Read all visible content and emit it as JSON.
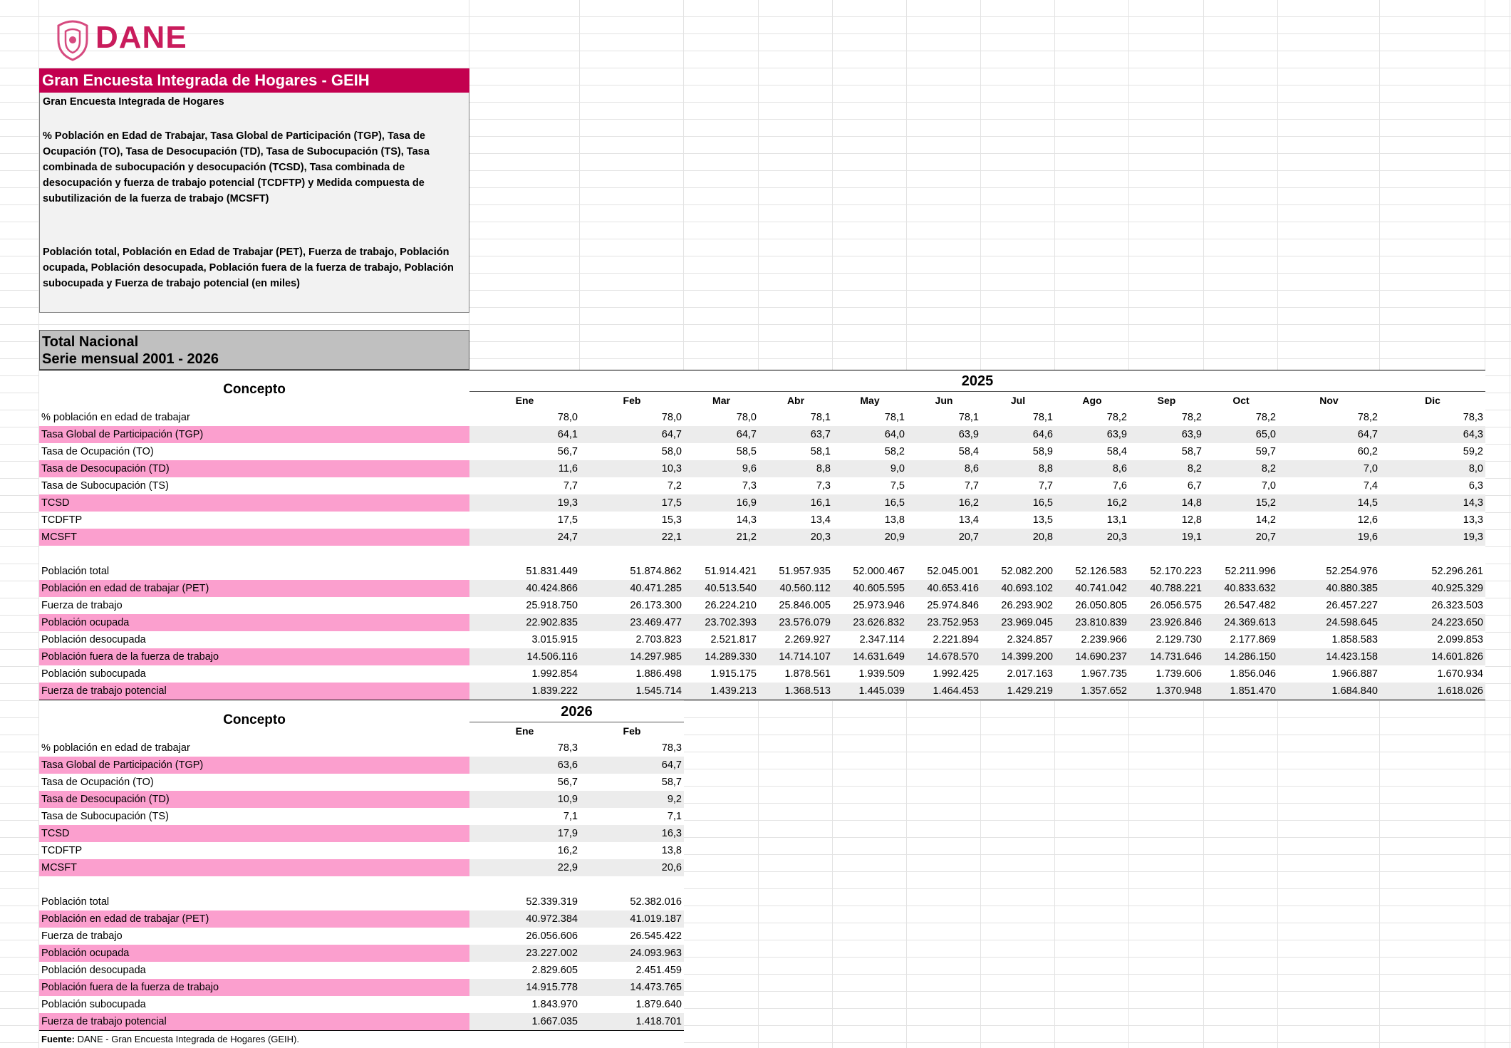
{
  "header": {
    "logo": "DANE",
    "title": "Gran Encuesta Integrada de Hogares - GEIH",
    "subtitle": "Gran Encuesta Integrada de Hogares",
    "description_rates": "% Población en Edad de Trabajar, Tasa Global de Participación (TGP), Tasa de Ocupación (TO), Tasa de Desocupación (TD), Tasa de Subocupación (TS), Tasa combinada de subocupación y desocupación (TCSD), Tasa combinada de desocupación y fuerza de trabajo potencial (TCDFTP) y Medida compuesta de subutilización de la fuerza de trabajo (MCSFT)",
    "description_population": "Población total, Población en Edad de Trabajar (PET), Fuerza de trabajo, Población ocupada, Población desocupada, Población fuera de la fuerza de trabajo, Población subocupada y Fuerza de trabajo potencial (en miles)",
    "region": "Total Nacional",
    "series": "Serie mensual 2001 - 2026"
  },
  "tables": [
    {
      "concept": "Concepto",
      "year": "2025",
      "months": [
        "Ene",
        "Feb",
        "Mar",
        "Abr",
        "May",
        "Jun",
        "Jul",
        "Ago",
        "Sep",
        "Oct",
        "Nov",
        "Dic"
      ],
      "groups": [
        [
          {
            "label": "% población en edad de trabajar",
            "values": [
              "78,0",
              "78,0",
              "78,0",
              "78,1",
              "78,1",
              "78,1",
              "78,1",
              "78,2",
              "78,2",
              "78,2",
              "78,2",
              "78,3"
            ]
          },
          {
            "label": "Tasa Global de Participación (TGP)",
            "values": [
              "64,1",
              "64,7",
              "64,7",
              "63,7",
              "64,0",
              "63,9",
              "64,6",
              "63,9",
              "63,9",
              "65,0",
              "64,7",
              "64,3"
            ]
          },
          {
            "label": "Tasa de Ocupación (TO)",
            "values": [
              "56,7",
              "58,0",
              "58,5",
              "58,1",
              "58,2",
              "58,4",
              "58,9",
              "58,4",
              "58,7",
              "59,7",
              "60,2",
              "59,2"
            ]
          },
          {
            "label": "Tasa de Desocupación (TD)",
            "values": [
              "11,6",
              "10,3",
              "9,6",
              "8,8",
              "9,0",
              "8,6",
              "8,8",
              "8,6",
              "8,2",
              "8,2",
              "7,0",
              "8,0"
            ]
          },
          {
            "label": "Tasa de Subocupación (TS)",
            "values": [
              "7,7",
              "7,2",
              "7,3",
              "7,3",
              "7,5",
              "7,7",
              "7,7",
              "7,6",
              "6,7",
              "7,0",
              "7,4",
              "6,3"
            ]
          },
          {
            "label": "TCSD",
            "values": [
              "19,3",
              "17,5",
              "16,9",
              "16,1",
              "16,5",
              "16,2",
              "16,5",
              "16,2",
              "14,8",
              "15,2",
              "14,5",
              "14,3"
            ]
          },
          {
            "label": "TCDFTP",
            "values": [
              "17,5",
              "15,3",
              "14,3",
              "13,4",
              "13,8",
              "13,4",
              "13,5",
              "13,1",
              "12,8",
              "14,2",
              "12,6",
              "13,3"
            ]
          },
          {
            "label": "MCSFT",
            "values": [
              "24,7",
              "22,1",
              "21,2",
              "20,3",
              "20,9",
              "20,7",
              "20,8",
              "20,3",
              "19,1",
              "20,7",
              "19,6",
              "19,3"
            ]
          }
        ],
        [
          {
            "label": "Población total",
            "values": [
              "51.831.449",
              "51.874.862",
              "51.914.421",
              "51.957.935",
              "52.000.467",
              "52.045.001",
              "52.082.200",
              "52.126.583",
              "52.170.223",
              "52.211.996",
              "52.254.976",
              "52.296.261"
            ]
          },
          {
            "label": "Población en edad de trabajar (PET)",
            "values": [
              "40.424.866",
              "40.471.285",
              "40.513.540",
              "40.560.112",
              "40.605.595",
              "40.653.416",
              "40.693.102",
              "40.741.042",
              "40.788.221",
              "40.833.632",
              "40.880.385",
              "40.925.329"
            ]
          },
          {
            "label": "Fuerza de trabajo",
            "values": [
              "25.918.750",
              "26.173.300",
              "26.224.210",
              "25.846.005",
              "25.973.946",
              "25.974.846",
              "26.293.902",
              "26.050.805",
              "26.056.575",
              "26.547.482",
              "26.457.227",
              "26.323.503"
            ]
          },
          {
            "label": "Población ocupada",
            "values": [
              "22.902.835",
              "23.469.477",
              "23.702.393",
              "23.576.079",
              "23.626.832",
              "23.752.953",
              "23.969.045",
              "23.810.839",
              "23.926.846",
              "24.369.613",
              "24.598.645",
              "24.223.650"
            ]
          },
          {
            "label": "Población desocupada",
            "values": [
              "3.015.915",
              "2.703.823",
              "2.521.817",
              "2.269.927",
              "2.347.114",
              "2.221.894",
              "2.324.857",
              "2.239.966",
              "2.129.730",
              "2.177.869",
              "1.858.583",
              "2.099.853"
            ]
          },
          {
            "label": "Población fuera de la fuerza de trabajo",
            "values": [
              "14.506.116",
              "14.297.985",
              "14.289.330",
              "14.714.107",
              "14.631.649",
              "14.678.570",
              "14.399.200",
              "14.690.237",
              "14.731.646",
              "14.286.150",
              "14.423.158",
              "14.601.826"
            ]
          },
          {
            "label": "Población subocupada",
            "values": [
              "1.992.854",
              "1.886.498",
              "1.915.175",
              "1.878.561",
              "1.939.509",
              "1.992.425",
              "2.017.163",
              "1.967.735",
              "1.739.606",
              "1.856.046",
              "1.966.887",
              "1.670.934"
            ]
          },
          {
            "label": "Fuerza de trabajo potencial",
            "values": [
              "1.839.222",
              "1.545.714",
              "1.439.213",
              "1.368.513",
              "1.445.039",
              "1.464.453",
              "1.429.219",
              "1.357.652",
              "1.370.948",
              "1.851.470",
              "1.684.840",
              "1.618.026"
            ]
          }
        ]
      ]
    },
    {
      "concept": "Concepto",
      "year": "2026",
      "months": [
        "Ene",
        "Feb"
      ],
      "groups": [
        [
          {
            "label": "% población en edad de trabajar",
            "values": [
              "78,3",
              "78,3"
            ]
          },
          {
            "label": "Tasa Global de Participación (TGP)",
            "values": [
              "63,6",
              "64,7"
            ]
          },
          {
            "label": "Tasa de Ocupación (TO)",
            "values": [
              "56,7",
              "58,7"
            ]
          },
          {
            "label": "Tasa de Desocupación (TD)",
            "values": [
              "10,9",
              "9,2"
            ]
          },
          {
            "label": "Tasa de Subocupación (TS)",
            "values": [
              "7,1",
              "7,1"
            ]
          },
          {
            "label": "TCSD",
            "values": [
              "17,9",
              "16,3"
            ]
          },
          {
            "label": "TCDFTP",
            "values": [
              "16,2",
              "13,8"
            ]
          },
          {
            "label": "MCSFT",
            "values": [
              "22,9",
              "20,6"
            ]
          }
        ],
        [
          {
            "label": "Población total",
            "values": [
              "52.339.319",
              "52.382.016"
            ]
          },
          {
            "label": "Población en edad de trabajar (PET)",
            "values": [
              "40.972.384",
              "41.019.187"
            ]
          },
          {
            "label": "Fuerza de trabajo",
            "values": [
              "26.056.606",
              "26.545.422"
            ]
          },
          {
            "label": "Población ocupada",
            "values": [
              "23.227.002",
              "24.093.963"
            ]
          },
          {
            "label": "Población desocupada",
            "values": [
              "2.829.605",
              "2.451.459"
            ]
          },
          {
            "label": "Población fuera de la fuerza de trabajo",
            "values": [
              "14.915.778",
              "14.473.765"
            ]
          },
          {
            "label": "Población subocupada",
            "values": [
              "1.843.970",
              "1.879.640"
            ]
          },
          {
            "label": "Fuerza de trabajo potencial",
            "values": [
              "1.667.035",
              "1.418.701"
            ]
          }
        ]
      ]
    }
  ],
  "footer": {
    "label": "Fuente:",
    "text": "DANE - Gran Encuesta Integrada de Hogares (GEIH)."
  }
}
